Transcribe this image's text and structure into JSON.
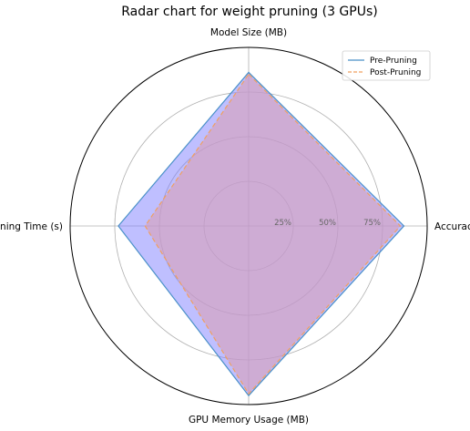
{
  "chart_data": {
    "type": "radar",
    "title": "Radar chart for weight pruning (3 GPUs)",
    "axes": [
      "Model Size (MB)",
      "Accuracy",
      "GPU Memory Usage (MB)",
      "GPU Training Time (s)"
    ],
    "radial_ticks": [
      "25%",
      "50%",
      "75%"
    ],
    "radial_tick_values": [
      0.25,
      0.5,
      0.75
    ],
    "rlim": [
      0,
      1
    ],
    "grid": true,
    "legend_position": "top-right",
    "series": [
      {
        "name": "Pre-Pruning",
        "values": [
          0.86,
          0.87,
          0.95,
          0.73
        ],
        "line_color": "#4a90c8",
        "line_style": "solid",
        "fill_color": "#8080ff"
      },
      {
        "name": "Post-Pruning",
        "values": [
          0.85,
          0.85,
          0.94,
          0.58
        ],
        "line_color": "#f0a060",
        "line_style": "dashed",
        "fill_color": "#d8a0b8"
      }
    ]
  }
}
